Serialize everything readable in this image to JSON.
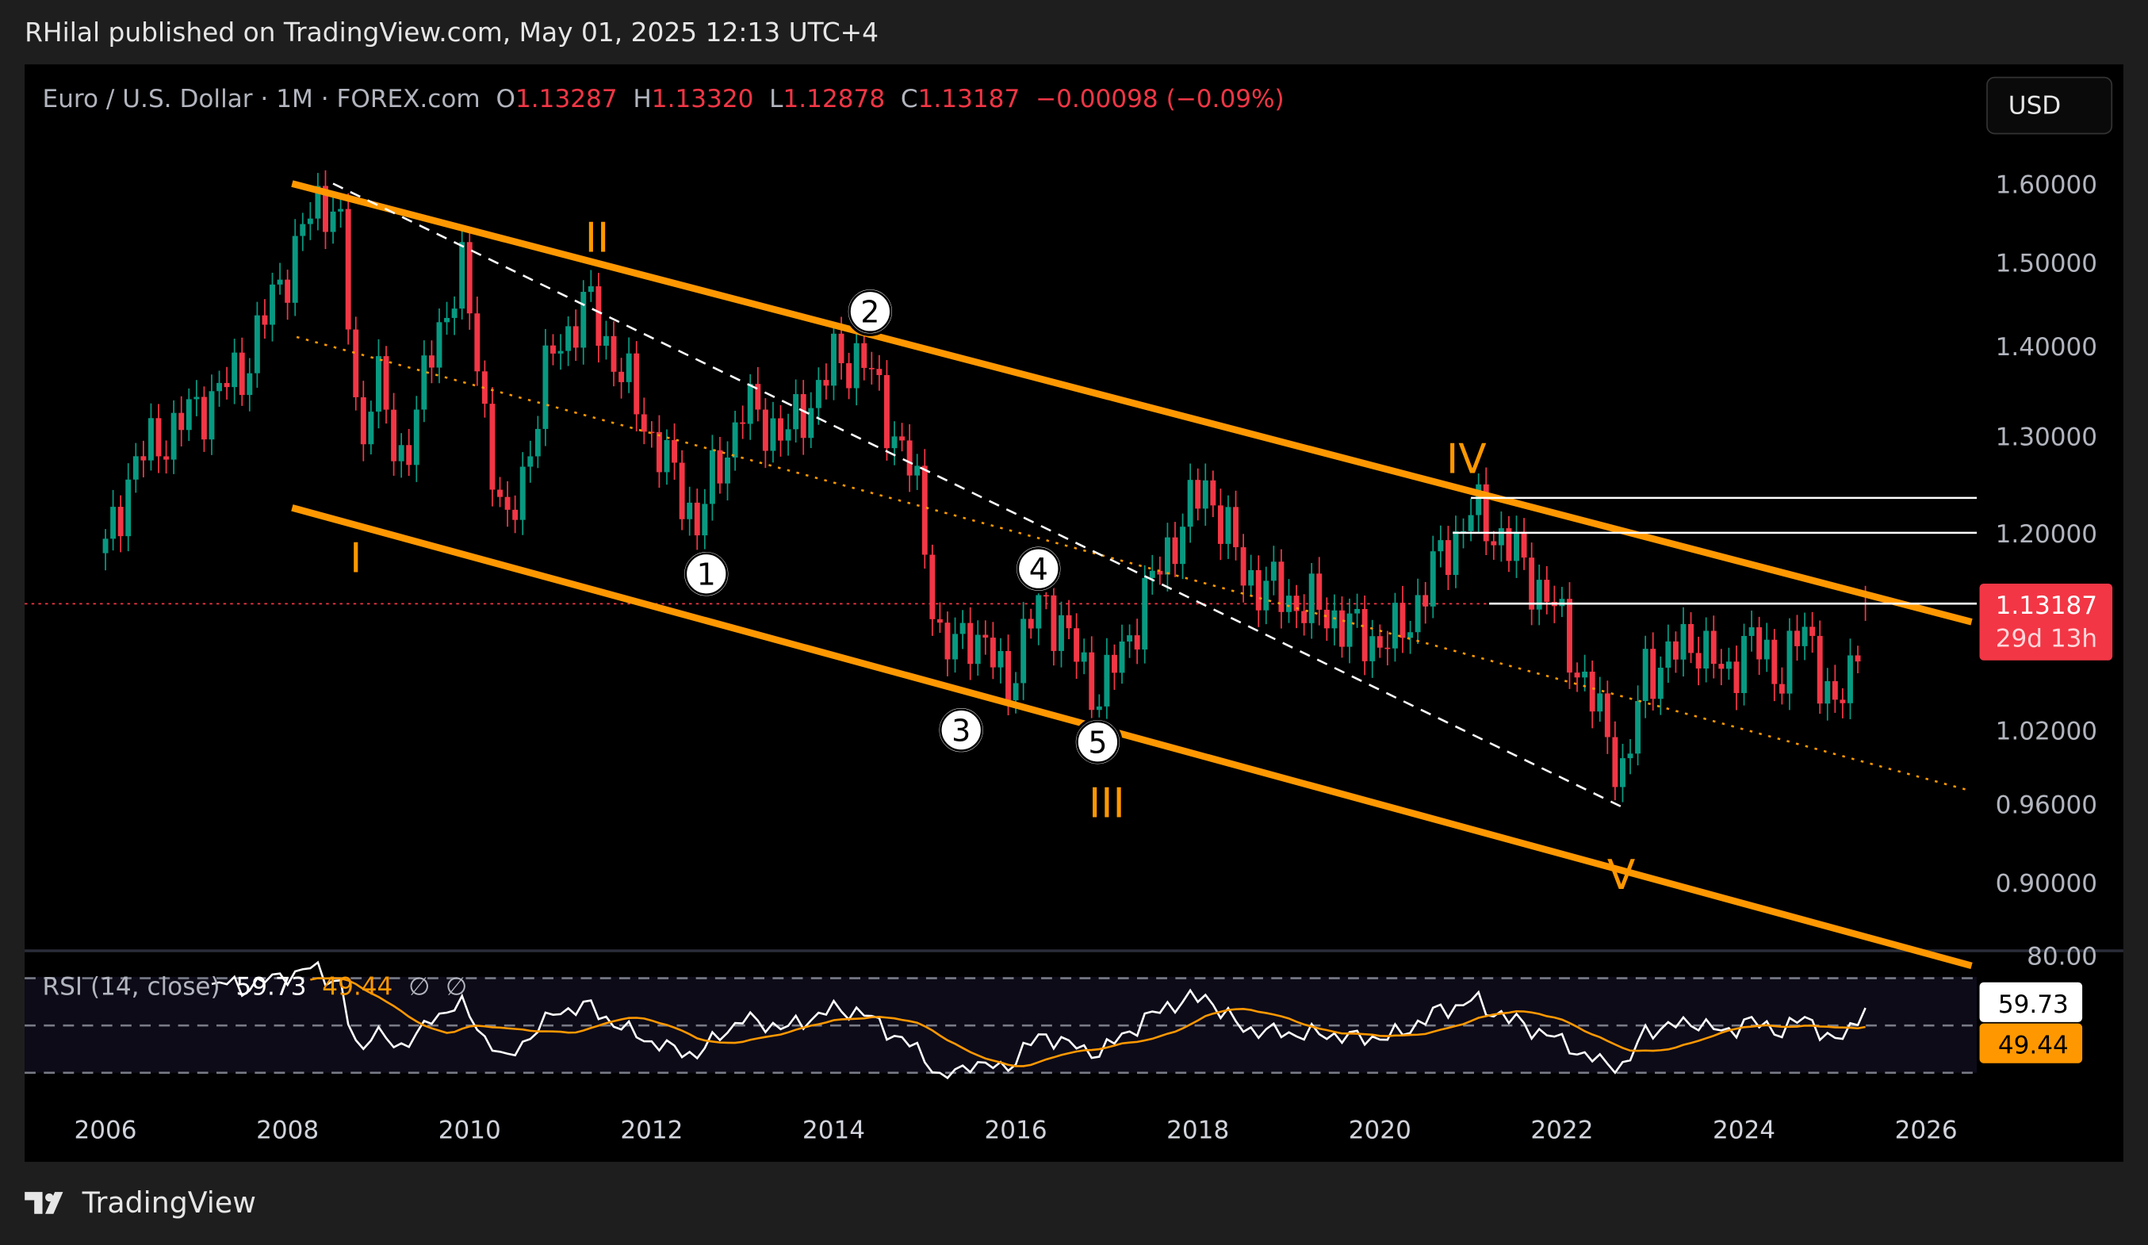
{
  "header": {
    "published": "RHilal published on TradingView.com, May 01, 2025 12:13 UTC+4"
  },
  "legend": {
    "symbol": "Euro / U.S. Dollar · 1M · FOREX.com",
    "o_label": "O",
    "o": "1.13287",
    "h_label": "H",
    "h": "1.13320",
    "l_label": "L",
    "l": "1.12878",
    "c_label": "C",
    "c": "1.13187",
    "change": "−0.00098 (−0.09%)"
  },
  "currency_button": "USD",
  "last_price": {
    "price": "1.13187",
    "countdown": "29d 13h"
  },
  "rsi": {
    "label": "RSI (14, close)",
    "value": "59.73",
    "ma": "49.44",
    "n1": "∅",
    "n2": "∅",
    "top_tick": "80.00"
  },
  "colors": {
    "up": "#089981",
    "down": "#f23645",
    "channel": "#ff9800",
    "rsi": "#ffffff",
    "rsi_ma": "#ff9800"
  },
  "brand": "TradingView",
  "chart_data": {
    "type": "candlestick",
    "title": "Euro / U.S. Dollar · 1M · FOREX.com",
    "scale": "log",
    "y_ticks": [
      "1.60000",
      "1.50000",
      "1.40000",
      "1.30000",
      "1.20000",
      "1.02000",
      "0.96000",
      "0.90000"
    ],
    "y_tick_values": [
      1.6,
      1.5,
      1.4,
      1.3,
      1.2,
      1.02,
      0.96,
      0.9
    ],
    "x_ticks": [
      "2006",
      "2008",
      "2010",
      "2012",
      "2014",
      "2016",
      "2018",
      "2020",
      "2022",
      "2024",
      "2026"
    ],
    "close_anchors": [
      [
        2006.0,
        1.18
      ],
      [
        2006.3,
        1.27
      ],
      [
        2006.9,
        1.32
      ],
      [
        2007.5,
        1.37
      ],
      [
        2007.9,
        1.47
      ],
      [
        2008.3,
        1.57
      ],
      [
        2008.55,
        1.58
      ],
      [
        2008.8,
        1.27
      ],
      [
        2008.95,
        1.39
      ],
      [
        2009.2,
        1.26
      ],
      [
        2009.9,
        1.5
      ],
      [
        2010.4,
        1.19
      ],
      [
        2010.9,
        1.39
      ],
      [
        2011.3,
        1.45
      ],
      [
        2011.8,
        1.34
      ],
      [
        2012.0,
        1.3
      ],
      [
        2012.5,
        1.21
      ],
      [
        2013.0,
        1.33
      ],
      [
        2013.5,
        1.3
      ],
      [
        2014.0,
        1.38
      ],
      [
        2014.3,
        1.39
      ],
      [
        2014.9,
        1.25
      ],
      [
        2015.2,
        1.08
      ],
      [
        2015.5,
        1.11
      ],
      [
        2015.9,
        1.06
      ],
      [
        2016.3,
        1.14
      ],
      [
        2016.9,
        1.05
      ],
      [
        2017.0,
        1.06
      ],
      [
        2017.7,
        1.19
      ],
      [
        2018.1,
        1.25
      ],
      [
        2018.5,
        1.16
      ],
      [
        2018.9,
        1.14
      ],
      [
        2019.5,
        1.12
      ],
      [
        2019.8,
        1.1
      ],
      [
        2020.2,
        1.1
      ],
      [
        2020.7,
        1.18
      ],
      [
        2021.0,
        1.22
      ],
      [
        2021.3,
        1.2
      ],
      [
        2021.9,
        1.13
      ],
      [
        2022.3,
        1.05
      ],
      [
        2022.7,
        0.98
      ],
      [
        2022.9,
        1.07
      ],
      [
        2023.5,
        1.1
      ],
      [
        2023.8,
        1.06
      ],
      [
        2024.0,
        1.1
      ],
      [
        2024.4,
        1.07
      ],
      [
        2024.7,
        1.11
      ],
      [
        2025.0,
        1.03
      ],
      [
        2025.2,
        1.08
      ],
      [
        2025.33,
        1.13187
      ]
    ],
    "lines": [
      {
        "name": "upper-channel",
        "from": [
          2008.05,
          1.6
        ],
        "to": [
          2026.5,
          1.115
        ],
        "style": "solid"
      },
      {
        "name": "lower-channel",
        "from": [
          2008.05,
          1.225
        ],
        "to": [
          2026.5,
          0.84
        ],
        "style": "solid"
      },
      {
        "name": "mid-channel",
        "from": [
          2008.1,
          1.41
        ],
        "to": [
          2026.5,
          0.97
        ],
        "style": "dotted"
      },
      {
        "name": "wave-trendline",
        "from": [
          2008.5,
          1.6
        ],
        "to": [
          2022.7,
          0.956
        ],
        "style": "dashed"
      }
    ],
    "levels": [
      {
        "price": 1.235,
        "from": 2021.0
      },
      {
        "price": 1.2,
        "from": 2020.8
      },
      {
        "price": 1.132,
        "from": 2021.2
      }
    ],
    "wave_labels": [
      {
        "text": "I",
        "x": 2008.75,
        "y": 1.175
      },
      {
        "text": "II",
        "x": 2011.4,
        "y": 1.53
      },
      {
        "text": "III",
        "x": 2017.0,
        "y": 0.96
      },
      {
        "text": "IV",
        "x": 2020.95,
        "y": 1.275
      },
      {
        "text": "V",
        "x": 2022.65,
        "y": 0.905
      }
    ],
    "sub_waves": [
      {
        "text": "1",
        "x": 2012.6,
        "y": 1.16
      },
      {
        "text": "2",
        "x": 2014.4,
        "y": 1.44
      },
      {
        "text": "3",
        "x": 2015.4,
        "y": 1.02
      },
      {
        "text": "4",
        "x": 2016.25,
        "y": 1.165
      },
      {
        "text": "5",
        "x": 2016.9,
        "y": 1.01
      }
    ],
    "rsi_levels": [
      70,
      50,
      30
    ]
  }
}
